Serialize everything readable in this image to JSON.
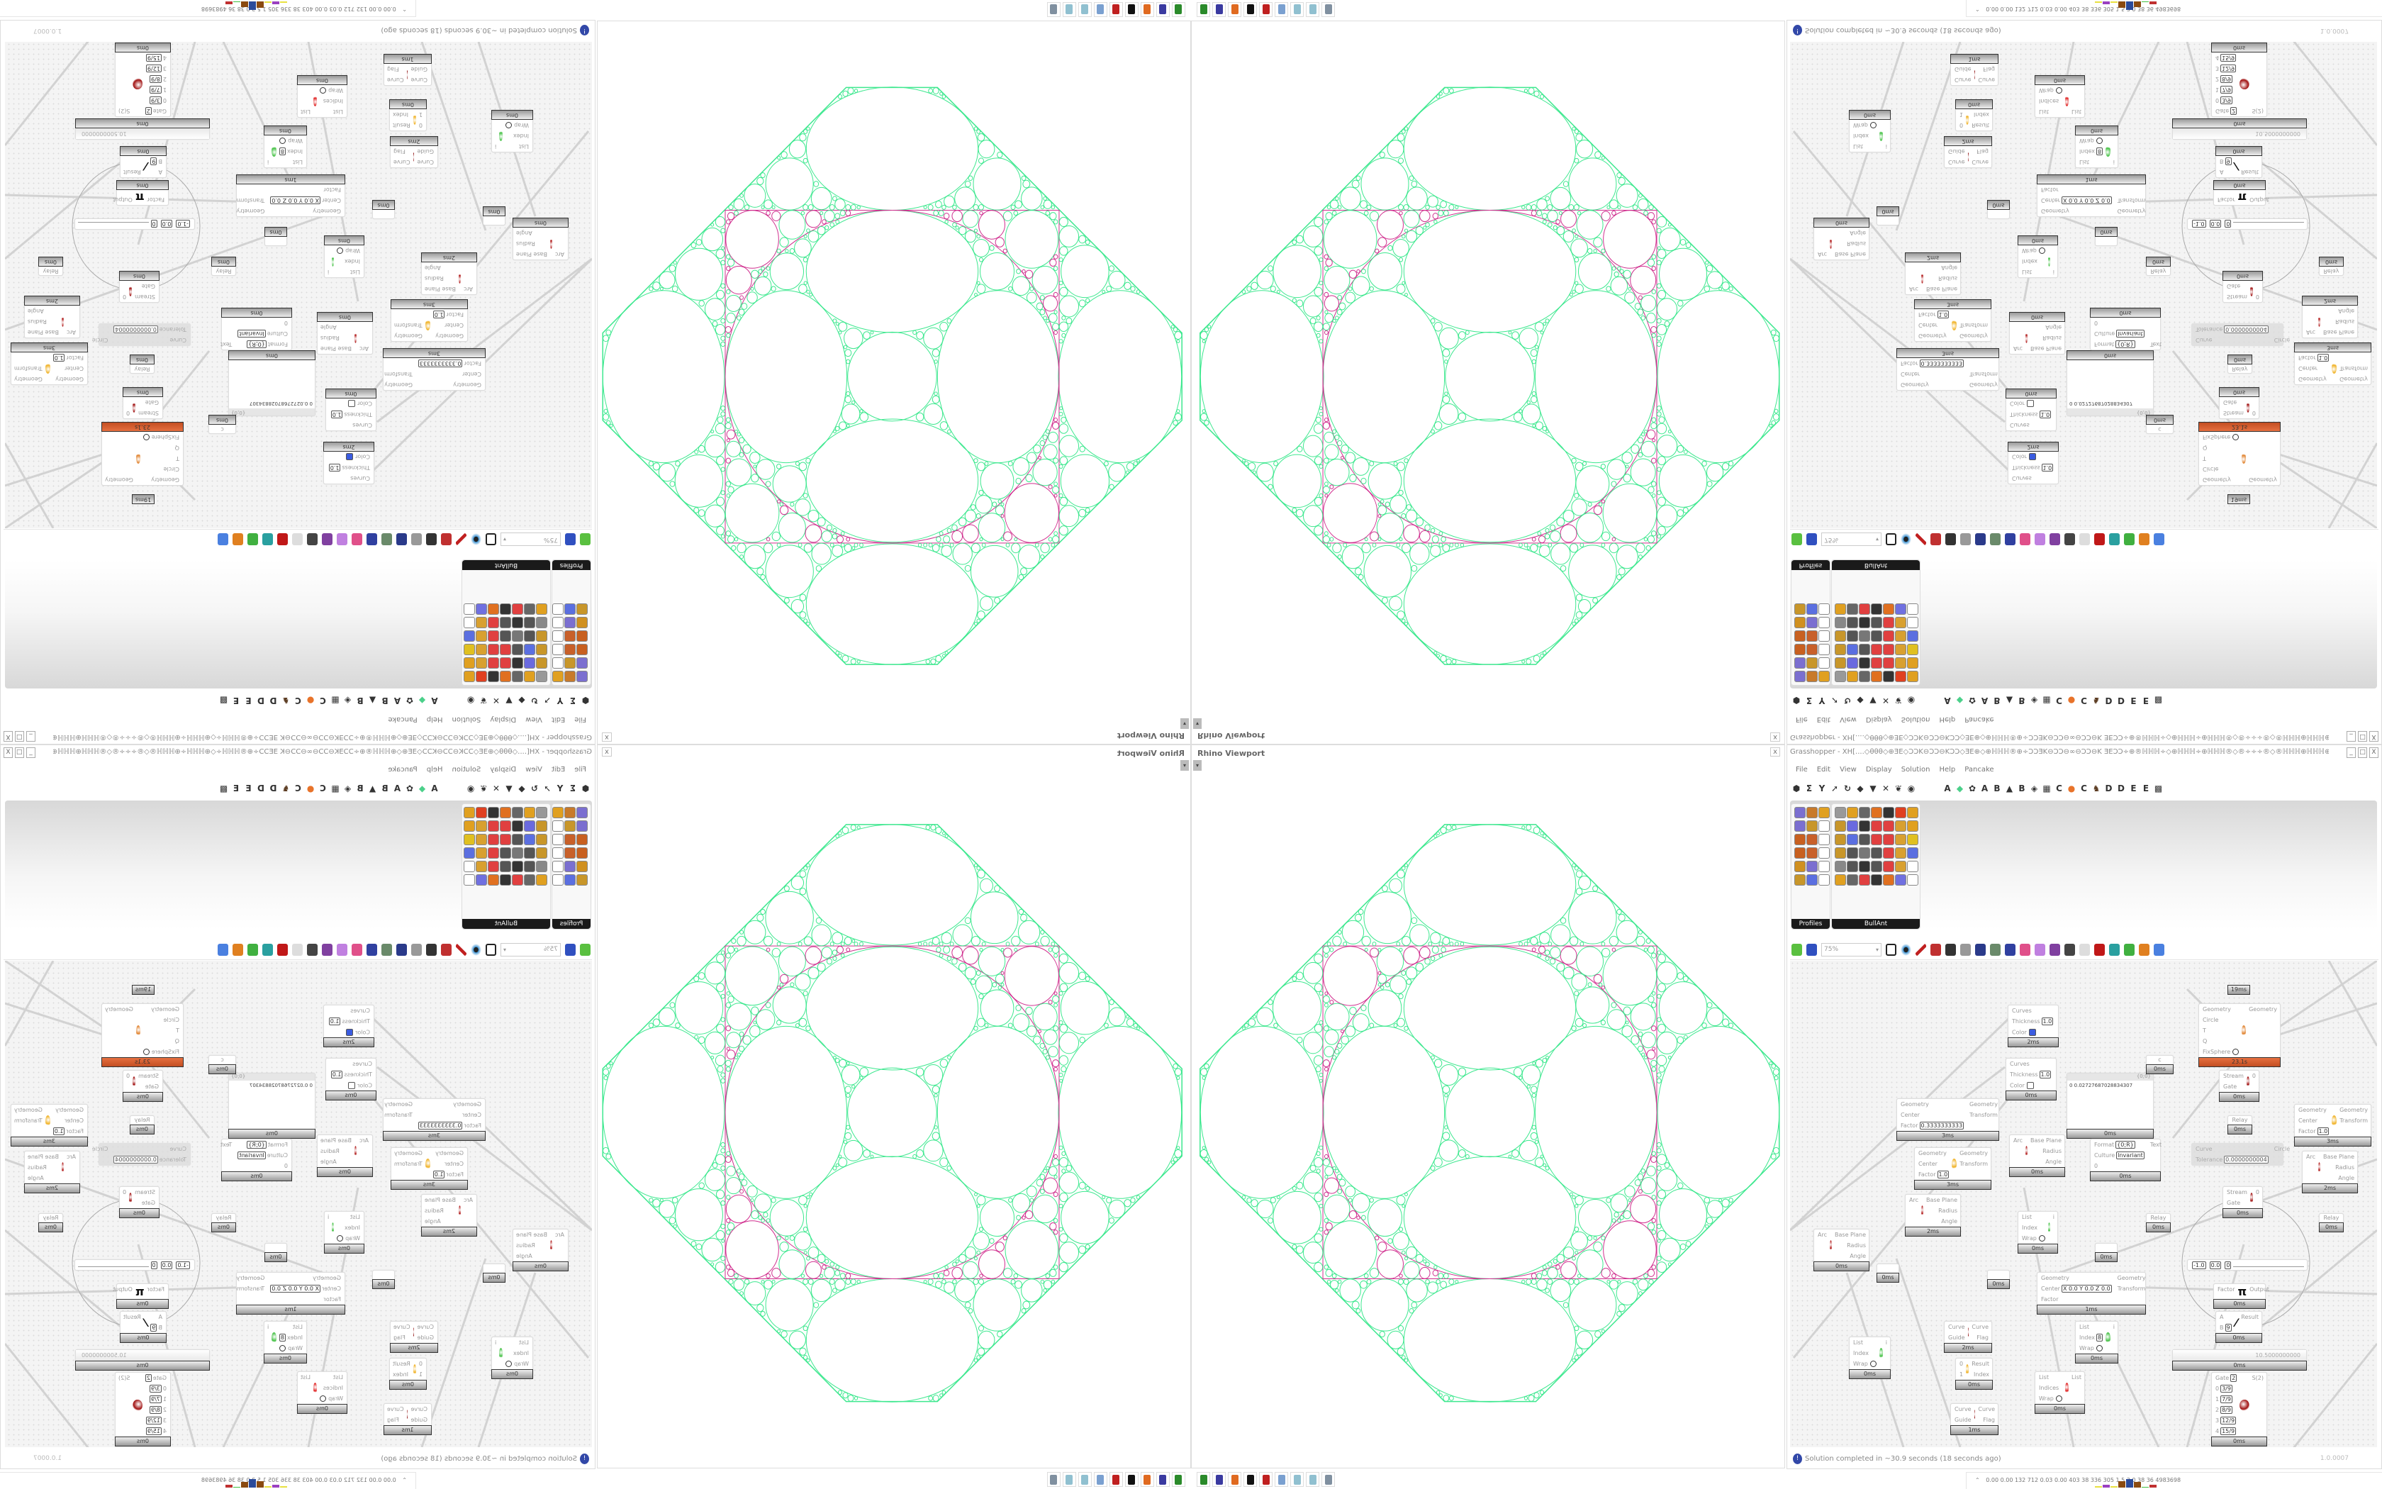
{
  "viewport": {
    "title": "Rhino Viewport",
    "close": "x",
    "dropdown": "▾",
    "colors": {
      "circles": "#3ee88f",
      "frame": "#d0308f"
    }
  },
  "gh": {
    "title": "Grasshopper - XH[....◇θθθ◇⊕ƎE◇ƆƆK⊖ƆƆ⊖KƆƆ◇ƎE⊕◇⊕ℍℍℍ®⊕÷ƆƆƎK⊖ƆƆ⊖∞⊖ƆƆ⊖K ƎEƆƆ÷⊕®ℍℍℍ÷◇⊕ℍℍℍ÷⊕ℍℍℍ®◇®÷÷÷®◇®ℍℍℍ⊕ℍℍℍ⊕◇⊕ℍℍℍ®⊖÷ƆƆƎK⊖ƆƆ⊖∞⊖...",
    "window_buttons": [
      "_",
      "□",
      "X"
    ],
    "menu": [
      "File",
      "Edit",
      "View",
      "Display",
      "Solution",
      "Help",
      "Pancake"
    ],
    "tool_icons": [
      {
        "glyph": "⬢",
        "name": "hexagon-icon"
      },
      {
        "glyph": "Σ",
        "name": "sigma-icon"
      },
      {
        "glyph": "Y",
        "name": "branch-icon"
      },
      {
        "glyph": "➚",
        "name": "arrow-icon"
      },
      {
        "glyph": "↻",
        "name": "hook-icon"
      },
      {
        "glyph": "◆",
        "name": "solid-icon"
      },
      {
        "glyph": "▼",
        "name": "funnel-icon"
      },
      {
        "glyph": "✕",
        "name": "cross-icon"
      },
      {
        "glyph": "❦",
        "name": "spiral-icon"
      },
      {
        "glyph": "◉",
        "name": "eye-icon"
      }
    ],
    "tab_icons": [
      {
        "glyph": "A",
        "name": "tab-a-icon"
      },
      {
        "glyph": "◆",
        "name": "green-gem-icon",
        "color": "#4bd08a"
      },
      {
        "glyph": "✿",
        "name": "flower-icon"
      },
      {
        "glyph": "A",
        "name": "tab-a2-icon"
      },
      {
        "glyph": "B",
        "name": "tab-b-icon"
      },
      {
        "glyph": "▲",
        "name": "mountain-icon"
      },
      {
        "glyph": "B",
        "name": "tab-b2-icon"
      },
      {
        "glyph": "◈",
        "name": "shield-icon"
      },
      {
        "glyph": "▦",
        "name": "grid-icon"
      },
      {
        "glyph": "C",
        "name": "tab-c-icon"
      },
      {
        "glyph": "●",
        "name": "orange-circle-icon",
        "color": "#e8732a"
      },
      {
        "glyph": "C",
        "name": "tab-c2-icon"
      },
      {
        "glyph": "♞",
        "name": "rooster-icon",
        "color": "#5a3a20"
      },
      {
        "glyph": "D",
        "name": "tab-d-icon"
      },
      {
        "glyph": "D",
        "name": "tab-d2-icon"
      },
      {
        "glyph": "E",
        "name": "tab-e-icon"
      },
      {
        "glyph": "E",
        "name": "tab-e2-icon"
      },
      {
        "glyph": "▩",
        "name": "checker-icon"
      }
    ],
    "ribbon": {
      "profiles": {
        "label": "Profiles",
        "expand": "+",
        "icons": [
          "#7b6fd0",
          "#c87a2a",
          "#e0a020",
          "#7b6fd0",
          "#c8962a",
          "#ffffff",
          "#c86020",
          "#c8602a",
          "#ffffff",
          "#c86020",
          "#c8602a",
          "#ffffff",
          "#d09020",
          "#7b6fd0",
          "#ffffff",
          "#c8962a",
          "#5b6fe0",
          "#ffffff"
        ]
      },
      "bullant": {
        "label": "BullAnt",
        "expand": "+",
        "icons": [
          "#999999",
          "#e0a020",
          "#666666",
          "#e07020",
          "#333333",
          "#e04020",
          "#e0a020",
          "#c8962a",
          "#6a6adf",
          "#333333",
          "#e04040",
          "#e04040",
          "#d8a030",
          "#e0a020",
          "#c8962a",
          "#5b6fe0",
          "#555555",
          "#e04040",
          "#e04040",
          "#d8a030",
          "#e0c020",
          "#c8962a",
          "#555555",
          "#777777",
          "#555555",
          "#e04040",
          "#d8a030",
          "#5b6fe0",
          "#888888",
          "#555555",
          "#333333",
          "#555555",
          "#e04040",
          "#d8a030",
          "#ffffff",
          "#e0a020",
          "#666666",
          "#e04040",
          "#333333",
          "#e07020",
          "#7070e0",
          "#ffffff"
        ]
      }
    },
    "canvas_toolbar": {
      "zoom": "75%",
      "icons": [
        {
          "name": "bake-icon",
          "color": "#c03030"
        },
        {
          "name": "mesh-icon",
          "color": "#333333"
        },
        {
          "name": "at-icon",
          "color": "#999999"
        },
        {
          "name": "gha-icon",
          "color": "#2a3a8a"
        },
        {
          "name": "window-icon",
          "color": "#6a8a6a"
        },
        {
          "name": "search-icon",
          "color": "#3040a0"
        },
        {
          "name": "package-icon",
          "color": "#e0508a"
        },
        {
          "name": "bulb-icon",
          "color": "#c080e0"
        },
        {
          "name": "crossed-wires-icon",
          "color": "#8040a0"
        },
        {
          "name": "egg-icon",
          "color": "#444444"
        },
        {
          "name": "dice-icon",
          "color": "#dddddd"
        },
        {
          "name": "red-gem-icon",
          "color": "#c01818"
        },
        {
          "name": "teal-shape-icon",
          "color": "#2aa0a0"
        },
        {
          "name": "green-shape-icon",
          "color": "#40b040"
        },
        {
          "name": "sphere-icon",
          "color": "#e08020"
        },
        {
          "name": "hexagon-blue-icon",
          "color": "#4a80e0"
        }
      ]
    },
    "nodes": [
      {
        "inputs": [
          {
            "label": "Curves"
          },
          {
            "label": "Thickness",
            "value": "1.0"
          },
          {
            "label": "Color",
            "swatch": "#3a5be0"
          }
        ],
        "outputs": [],
        "icon": "custom-preview-icon",
        "icon_color": "#3020a0",
        "time": "2ms"
      },
      {
        "inputs": [
          {
            "label": "Curves"
          },
          {
            "label": "Thickness",
            "value": "1.0"
          },
          {
            "label": "Color",
            "swatch": "#ffffff"
          }
        ],
        "outputs": [],
        "icon": "custom-preview-icon",
        "icon_color": "#3020a0",
        "time": "0ms"
      },
      {
        "inputs": [
          {
            "label": "Geometry"
          },
          {
            "label": "Center"
          },
          {
            "label": "Factor",
            "value": "0.3333333333"
          }
        ],
        "outputs": [
          {
            "label": "Geometry"
          },
          {
            "label": "Transform"
          }
        ],
        "icon": "scale-icon",
        "icon_color": "#f0b020",
        "time": "3ms"
      },
      {
        "inputs": [
          {
            "label": "Geometry"
          },
          {
            "label": "Center"
          },
          {
            "label": "Factor",
            "value": "1.0"
          }
        ],
        "outputs": [
          {
            "label": "Geometry"
          },
          {
            "label": "Transform"
          }
        ],
        "icon": "scale-icon",
        "icon_color": "#f0b020",
        "time": "3ms"
      },
      {
        "inputs": [
          {
            "label": "Arc"
          }
        ],
        "outputs": [
          {
            "label": "Base Plane"
          },
          {
            "label": "Radius"
          },
          {
            "label": "Angle"
          }
        ],
        "icon": "deconstruct-arc-icon",
        "icon_color": "#b01818",
        "time": "0ms"
      },
      {
        "inputs": [
          {
            "label": "Arc"
          }
        ],
        "outputs": [
          {
            "label": "Base Plane"
          },
          {
            "label": "Radius"
          },
          {
            "label": "Angle"
          }
        ],
        "icon": "deconstruct-arc-icon",
        "icon_color": "#b01818",
        "time": "2ms"
      },
      {
        "type": "panel",
        "header": "{0;0}",
        "text": "0 0.02727687028834307",
        "time": "0ms"
      },
      {
        "type": "relay",
        "label": "c",
        "time": "0ms"
      },
      {
        "inputs": [
          {
            "label": "Geometry"
          },
          {
            "label": "Circle"
          },
          {
            "label": "T"
          },
          {
            "label": "Q"
          },
          {
            "label": "FixSphere",
            "toggle": true
          }
        ],
        "outputs": [
          {
            "label": "Geometry"
          }
        ],
        "icon": "circle-packing-solver-icon",
        "icon_color": "#e0802a",
        "time": "23.1s",
        "warn": true
      },
      {
        "inputs": [
          {
            "label": "Stream"
          },
          {
            "label": "Gate"
          }
        ],
        "outputs": [
          {
            "label": "0"
          }
        ],
        "icon": "stream-gate-icon",
        "icon_color": "#a01010",
        "time": "0ms"
      },
      {
        "type": "relay",
        "label": "Relay",
        "time": "0ms"
      },
      {
        "inputs": [
          {
            "label": "Format",
            "value": "{0;R}"
          },
          {
            "label": "Culture",
            "value": "Invariant"
          },
          {
            "label": "0"
          }
        ],
        "outputs": [
          {
            "label": "Text"
          }
        ],
        "icon": "format-icon",
        "icon_color": "#ffffff",
        "time": "0ms"
      },
      {
        "inputs": [
          {
            "label": "Curve"
          },
          {
            "label": "Tolerance",
            "value": "0.0000000004"
          }
        ],
        "outputs": [
          {
            "label": "Circle"
          }
        ],
        "icon": "fit-circle-icon",
        "icon_color": "#888888",
        "disabled": true
      },
      {
        "inputs": [
          {
            "label": "Geometry"
          },
          {
            "label": "Center"
          },
          {
            "label": "Factor",
            "value": "1.0"
          }
        ],
        "outputs": [
          {
            "label": "Geometry"
          },
          {
            "label": "Transform"
          }
        ],
        "icon": "scale-icon",
        "icon_color": "#f0b020",
        "time": "3ms"
      },
      {
        "inputs": [
          {
            "label": "Arc"
          }
        ],
        "outputs": [
          {
            "label": "Base Plane"
          },
          {
            "label": "Radius"
          },
          {
            "label": "Angle"
          }
        ],
        "icon": "deconstruct-arc-icon",
        "icon_color": "#b01818",
        "time": "2ms"
      },
      {
        "inputs": [
          {
            "label": "Stream"
          },
          {
            "label": "Gate"
          }
        ],
        "outputs": [
          {
            "label": "0"
          }
        ],
        "icon": "stream-gate-icon",
        "icon_color": "#a01010",
        "time": "0ms"
      },
      {
        "inputs": [
          {
            "label": "Arc"
          }
        ],
        "outputs": [
          {
            "label": "Base Plane"
          },
          {
            "label": "Radius"
          },
          {
            "label": "Angle"
          }
        ],
        "icon": "deconstruct-arc-icon",
        "icon_color": "#b01818",
        "time": "0ms"
      },
      {
        "type": "relay",
        "label": "",
        "time": "0ms"
      },
      {
        "inputs": [
          {
            "label": "List"
          },
          {
            "label": "Index"
          },
          {
            "label": "Wrap",
            "toggle": true
          }
        ],
        "outputs": [
          {
            "label": "i"
          }
        ],
        "icon": "list-item-icon",
        "icon_color": "#40c040",
        "time": "0ms"
      },
      {
        "type": "relay",
        "label": "",
        "time": "0ms"
      },
      {
        "inputs": [
          {
            "label": "Geometry"
          },
          {
            "label": "Center",
            "value": "X 0.0 Y 0.0 Z 0.0"
          },
          {
            "label": "Factor"
          }
        ],
        "outputs": [
          {
            "label": "Geometry"
          },
          {
            "label": "Transform"
          }
        ],
        "icon": "scale-icon",
        "icon_color": "#f0b020",
        "time": "1ms"
      },
      {
        "inputs": [
          {
            "label": "Curve"
          },
          {
            "label": "Guide"
          }
        ],
        "outputs": [
          {
            "label": "Curve"
          },
          {
            "label": "Flag"
          }
        ],
        "icon": "flip-curve-icon",
        "icon_color": "#901010",
        "time": "2ms"
      },
      {
        "inputs": [
          {
            "label": "List"
          },
          {
            "label": "Index"
          },
          {
            "label": "Wrap",
            "toggle": true
          }
        ],
        "outputs": [
          {
            "label": "i"
          }
        ],
        "icon": "list-item-icon",
        "icon_color": "#40c040",
        "time": "0ms"
      },
      {
        "inputs": [
          {
            "label": "0"
          },
          {
            "label": "1"
          }
        ],
        "outputs": [
          {
            "label": "Result"
          },
          {
            "label": "Index"
          }
        ],
        "icon": "stream-filter-icon",
        "icon_color": "#f0b020",
        "time": "0ms"
      },
      {
        "inputs": [
          {
            "label": "List"
          },
          {
            "label": "Indices"
          },
          {
            "label": "Wrap",
            "toggle": true
          }
        ],
        "outputs": [
          {
            "label": "List"
          }
        ],
        "icon": "cull-index-icon",
        "icon_color": "#e02020",
        "time": "0ms"
      },
      {
        "inputs": [
          {
            "label": "Curve"
          },
          {
            "label": "Guide"
          }
        ],
        "outputs": [
          {
            "label": "Curve"
          },
          {
            "label": "Flag"
          }
        ],
        "icon": "flip-curve-icon",
        "icon_color": "#901010",
        "time": "1ms"
      },
      {
        "inputs": [
          {
            "label": "List"
          },
          {
            "label": "Index",
            "value": "8"
          },
          {
            "label": "Wrap",
            "toggle": true
          }
        ],
        "outputs": [
          {
            "label": "i"
          }
        ],
        "icon": "list-item-icon",
        "icon_color": "#40c040",
        "time": "0ms"
      },
      {
        "type": "relay",
        "label": "Relay",
        "time": "0ms"
      },
      {
        "type": "relay",
        "label": "Relay",
        "time": "0ms"
      },
      {
        "type": "relay",
        "label": "",
        "time": "0ms"
      },
      {
        "type": "mdslider",
        "values": [
          "-1.0",
          "0.0",
          "0"
        ]
      },
      {
        "inputs": [
          {
            "label": "Factor"
          }
        ],
        "outputs": [
          {
            "label": "Output"
          }
        ],
        "icon": "pi-icon",
        "glyph": "π",
        "time": "0ms"
      },
      {
        "inputs": [
          {
            "label": "A"
          },
          {
            "label": "B",
            "value": "9"
          }
        ],
        "outputs": [
          {
            "label": "Result"
          }
        ],
        "icon": "division-icon",
        "glyph": "⁄",
        "time": "0ms"
      },
      {
        "type": "slider",
        "value": "10.5000000000",
        "time": "0ms"
      },
      {
        "inputs": [
          {
            "label": "Gate",
            "value": "2"
          },
          {
            "label": "0",
            "value": "3/9"
          },
          {
            "label": "1",
            "value": "7/9"
          },
          {
            "label": "2",
            "value": "8/9"
          },
          {
            "label": "3",
            "value": "12/9"
          },
          {
            "label": "4",
            "value": "15/9"
          }
        ],
        "outputs": [
          {
            "label": "S(2)"
          }
        ],
        "icon": "stream-gate-icon",
        "icon_color": "#a01010",
        "time": "0ms"
      },
      {
        "type": "footer",
        "time": "19ms"
      }
    ],
    "status": {
      "icon": "!",
      "message": "Solution completed in ~30.9 seconds (18 seconds ago)",
      "version": "1.0.0007"
    }
  },
  "taskbar": {
    "apps": [
      {
        "name": "download-app-icon",
        "color": "#2a8a2a"
      },
      {
        "name": "floppy-64-app-icon",
        "color": "#3a3aa0"
      },
      {
        "name": "firefox-app-icon",
        "color": "#e06a20"
      },
      {
        "name": "rhino-app-icon",
        "color": "#111111"
      },
      {
        "name": "red-app-icon",
        "color": "#c02020"
      },
      {
        "name": "calculator-app-icon",
        "color": "#7aa0d0"
      },
      {
        "name": "notepad-app-icon",
        "color": "#90c0d0"
      },
      {
        "name": "notepad2-app-icon",
        "color": "#90c0d0"
      },
      {
        "name": "document-app-icon",
        "color": "#8090a0"
      }
    ],
    "stats_arrow": "⌃",
    "stats": "0.00 0.00 132 712 0.03 0.00 403 38 336 305 1.5 3.0 38 36 4983698",
    "bar_colors": [
      "#e8e040",
      "#9a40c0",
      "#e8e040",
      "#8a4a10",
      "#2a4a9a",
      "#8a4a10",
      "#40c040",
      "#c03030"
    ]
  }
}
